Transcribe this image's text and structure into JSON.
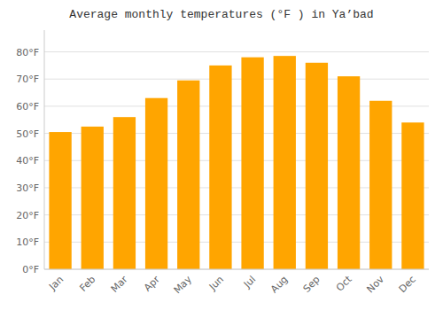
{
  "chart_data": {
    "type": "bar",
    "title": "Average monthly temperatures (°F ) in Ya’bad",
    "categories": [
      "Jan",
      "Feb",
      "Mar",
      "Apr",
      "May",
      "Jun",
      "Jul",
      "Aug",
      "Sep",
      "Oct",
      "Nov",
      "Dec"
    ],
    "values": [
      50.5,
      52.5,
      56.0,
      63.0,
      69.5,
      75.0,
      78.0,
      78.5,
      76.0,
      71.0,
      62.0,
      54.0
    ],
    "color": "#FFA500",
    "ylim": [
      0,
      88
    ],
    "yticks": [
      {
        "value": 0,
        "label": "0°F"
      },
      {
        "value": 10,
        "label": "10°F"
      },
      {
        "value": 20,
        "label": "20°F"
      },
      {
        "value": 30,
        "label": "30°F"
      },
      {
        "value": 40,
        "label": "40°F"
      },
      {
        "value": 50,
        "label": "50°F"
      },
      {
        "value": 60,
        "label": "60°F"
      },
      {
        "value": 70,
        "label": "70°F"
      },
      {
        "value": 80,
        "label": "80°F"
      }
    ],
    "grid": true
  }
}
